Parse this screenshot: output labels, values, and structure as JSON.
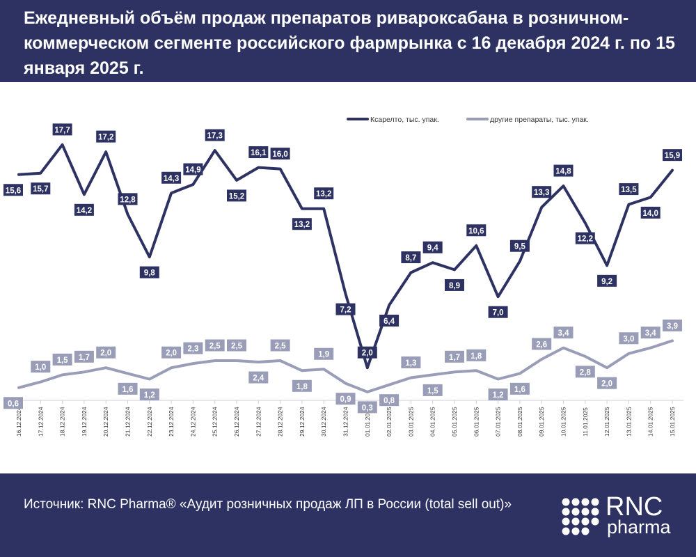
{
  "header": {
    "title": "Ежедневный объём продаж препаратов ривароксабана в розничном-коммерческом сегменте российского фармрынка с 16 декабря 2024 г. по 15 января 2025 г."
  },
  "footer": {
    "source": "Источник: RNC Pharma® «Аудит розничных продаж ЛП в России (total sell out)»",
    "logo_top": "RNC",
    "logo_bottom": "pharma"
  },
  "colors": {
    "header_bg": "#2e3263",
    "series_main": "#2e3263",
    "series_other": "#9a9db8"
  },
  "chart_data": {
    "type": "line",
    "title": "",
    "xlabel": "",
    "ylabel": "",
    "ylim": [
      0,
      18.5
    ],
    "grid": false,
    "legend_position": "top-right",
    "categories": [
      "16.12.2024",
      "17.12.2024",
      "18.12.2024",
      "19.12.2024",
      "20.12.2024",
      "21.12.2024",
      "22.12.2024",
      "23.12.2024",
      "24.12.2024",
      "25.12.2024",
      "26.12.2024",
      "27.12.2024",
      "28.12.2024",
      "29.12.2024",
      "30.12.2024",
      "31.12.2024",
      "01.01.2025",
      "02.01.2025",
      "03.01.2025",
      "04.01.2025",
      "05.01.2025",
      "06.01.2025",
      "07.01.2025",
      "08.01.2025",
      "09.01.2025",
      "10.01.2025",
      "11.01.2025",
      "12.01.2025",
      "13.01.2025",
      "14.01.2025",
      "15.01.2025"
    ],
    "series": [
      {
        "name": "Ксарелто, тыс. упак.",
        "values": [
          15.6,
          15.7,
          17.7,
          14.2,
          17.2,
          12.8,
          9.8,
          14.3,
          14.9,
          17.3,
          15.2,
          16.1,
          16.0,
          13.2,
          13.2,
          7.2,
          2.0,
          6.4,
          8.7,
          9.4,
          8.9,
          10.6,
          7.0,
          9.5,
          13.3,
          14.8,
          12.2,
          9.2,
          13.5,
          14.0,
          15.9
        ],
        "labels": [
          "15,6",
          "15,7",
          "17,7",
          "14,2",
          "17,2",
          "12,8",
          "9,8",
          "14,3",
          "14,9",
          "17,3",
          "15,2",
          "16,1",
          "16,0",
          "13,2",
          "13,2",
          "7,2",
          "2,0",
          "6,4",
          "8,7",
          "9,4",
          "8,9",
          "10,6",
          "7,0",
          "9,5",
          "13,3",
          "14,8",
          "12,2",
          "9,2",
          "13,5",
          "14,0",
          "15,9"
        ]
      },
      {
        "name": "другие препараты, тыс. упак.",
        "values": [
          0.6,
          1.0,
          1.5,
          1.7,
          2.0,
          1.6,
          1.2,
          2.0,
          2.3,
          2.5,
          2.5,
          2.4,
          2.5,
          1.8,
          1.9,
          0.9,
          0.3,
          0.8,
          1.3,
          1.5,
          1.7,
          1.8,
          1.2,
          1.6,
          2.6,
          3.4,
          2.8,
          2.0,
          3.0,
          3.4,
          3.9
        ],
        "labels": [
          "0,6",
          "1,0",
          "1,5",
          "1,7",
          "2,0",
          "1,6",
          "1,2",
          "2,0",
          "2,3",
          "2,5",
          "2,5",
          "2,4",
          "2,5",
          "1,8",
          "1,9",
          "0,9",
          "0,3",
          "0,8",
          "1,3",
          "1,5",
          "1,7",
          "1,8",
          "1,2",
          "1,6",
          "2,6",
          "3,4",
          "2,8",
          "2,0",
          "3,0",
          "3,4",
          "3,9"
        ]
      }
    ]
  }
}
